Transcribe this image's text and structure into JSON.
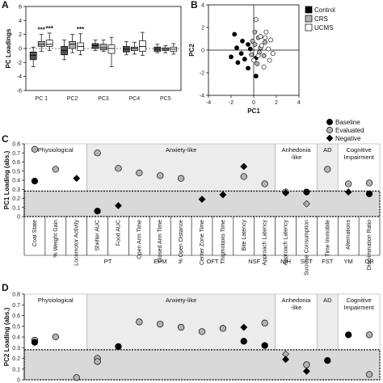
{
  "chart_data": [
    {
      "panel": "A",
      "type": "box",
      "ylabel": "PC Loadings",
      "ylim": [
        -6,
        6
      ],
      "yticks": [
        -6,
        -4,
        -2,
        0,
        2,
        4,
        6
      ],
      "categories": [
        "PC 1",
        "PC2",
        "PC3",
        "PC4",
        "PC5"
      ],
      "groups": [
        "Control",
        "CRS",
        "UCMS"
      ],
      "colors": [
        "#555555",
        "#b3b3b3",
        "#ffffff"
      ],
      "annotations": [
        {
          "category": "PC 1",
          "group": "CRS",
          "text": "***"
        },
        {
          "category": "PC 1",
          "group": "UCMS",
          "text": "***"
        },
        {
          "category": "PC2",
          "group": "UCMS",
          "text": "***"
        }
      ],
      "boxes": [
        [
          {
            "min": -2.6,
            "q1": -1.6,
            "med": -1.0,
            "q3": -0.5,
            "max": 0.2
          },
          {
            "min": -0.4,
            "q1": 0.3,
            "med": 0.6,
            "q3": 1.0,
            "max": 2.0
          },
          {
            "min": -0.3,
            "q1": 0.3,
            "med": 0.6,
            "q3": 1.2,
            "max": 2.2
          }
        ],
        [
          {
            "min": -1.6,
            "q1": -0.9,
            "med": -0.3,
            "q3": 0.3,
            "max": 1.2
          },
          {
            "min": -0.6,
            "q1": 0.0,
            "med": 0.6,
            "q3": 1.0,
            "max": 2.0
          },
          {
            "min": -0.9,
            "q1": -0.3,
            "med": 0.3,
            "q3": 0.8,
            "max": 2.1
          }
        ],
        [
          {
            "min": -0.3,
            "q1": 0.0,
            "med": 0.4,
            "q3": 0.7,
            "max": 1.2
          },
          {
            "min": -0.4,
            "q1": -0.2,
            "med": 0.1,
            "q3": 0.6,
            "max": 1.2
          },
          {
            "min": -2.6,
            "q1": -0.7,
            "med": 0.0,
            "q3": 0.5,
            "max": 1.6
          }
        ],
        [
          {
            "min": -0.9,
            "q1": -0.5,
            "med": -0.1,
            "q3": 0.3,
            "max": 1.0
          },
          {
            "min": -0.8,
            "q1": -0.3,
            "med": 0.0,
            "q3": 0.2,
            "max": 0.9
          },
          {
            "min": -1.0,
            "q1": -0.4,
            "med": 0.3,
            "q3": 1.1,
            "max": 2.3
          }
        ],
        [
          {
            "min": -0.6,
            "q1": -0.4,
            "med": -0.1,
            "q3": 0.2,
            "max": 0.6
          },
          {
            "min": -0.6,
            "q1": -0.3,
            "med": -0.1,
            "q3": 0.1,
            "max": 0.4
          },
          {
            "min": -0.8,
            "q1": -0.4,
            "med": -0.1,
            "q3": 0.2,
            "max": 0.7
          }
        ]
      ]
    },
    {
      "panel": "B",
      "type": "scatter",
      "xlabel": "PC1",
      "ylabel": "PC2",
      "xlim": [
        -4,
        4
      ],
      "ylim": [
        -4,
        4
      ],
      "xticks": [
        -4,
        -2,
        0,
        2,
        4
      ],
      "yticks": [
        -4,
        -2,
        0,
        2,
        4
      ],
      "legend": [
        "Control",
        "CRS",
        "UCMS"
      ],
      "series": [
        {
          "name": "Control",
          "color": "#000000",
          "points": [
            [
              -1.7,
              1.4
            ],
            [
              -1.0,
              0.8
            ],
            [
              -2.0,
              -0.6
            ],
            [
              -1.4,
              -1.1
            ],
            [
              -1.1,
              -0.3
            ],
            [
              -0.8,
              -0.8
            ],
            [
              -0.3,
              0.1
            ],
            [
              -0.5,
              -1.6
            ],
            [
              0.2,
              -0.7
            ],
            [
              0.2,
              -2.3
            ],
            [
              -0.5,
              0.5
            ],
            [
              -1.5,
              0.2
            ]
          ]
        },
        {
          "name": "CRS",
          "color": "#b3b3b3",
          "points": [
            [
              0.1,
              1.6
            ],
            [
              0.4,
              1.1
            ],
            [
              -0.1,
              0.8
            ],
            [
              0.6,
              0.2
            ],
            [
              0.9,
              -0.5
            ],
            [
              0.3,
              -1.2
            ],
            [
              0.1,
              0.5
            ],
            [
              0.5,
              -0.2
            ],
            [
              1.0,
              0.7
            ],
            [
              -0.2,
              -0.4
            ]
          ]
        },
        {
          "name": "UCMS",
          "color": "#ffffff",
          "points": [
            [
              0.2,
              2.7
            ],
            [
              1.1,
              1.6
            ],
            [
              0.6,
              1.2
            ],
            [
              1.5,
              0.9
            ],
            [
              1.3,
              0.1
            ],
            [
              0.4,
              -0.5
            ],
            [
              1.4,
              -0.9
            ],
            [
              0.9,
              -1.5
            ],
            [
              0.7,
              0.4
            ],
            [
              1.0,
              1.1
            ],
            [
              1.7,
              -0.3
            ],
            [
              0.0,
              -0.9
            ]
          ]
        }
      ]
    },
    {
      "panel": "C",
      "type": "scatter",
      "ylabel": "PC1 Loading (abs.)",
      "ylim": [
        0,
        0.8
      ],
      "yticks": [
        0,
        0.1,
        0.2,
        0.3,
        0.4,
        0.5,
        0.6,
        0.7,
        0.8
      ],
      "threshold": 0.28,
      "legend": [
        "Baseline",
        "Evaluated",
        "Negative"
      ],
      "categories": [
        "Coat State",
        "% Weight Gain",
        "Locomotor Activity",
        "Shelter AUC",
        "Food AUC",
        "Open Arm Time",
        "Closed Arm Time",
        "% Open Distance",
        "Center Zone Time",
        "Thigmotaxis Time",
        "Bite Latency",
        "Approach Latency",
        "Approach Latency",
        "Sucrose Consumption",
        "Time Immobile",
        "Alternations",
        "Discrimination Ratio"
      ],
      "domains": [
        "Physiological",
        "Anxiety-like",
        "Anhedonia -like",
        "AD",
        "Cognitive Impairment"
      ],
      "tests": [
        "PT",
        "EPM",
        "OFT",
        "NSF",
        "NIH",
        "SCT",
        "FST",
        "YM",
        "OR"
      ],
      "points": [
        {
          "x": 1,
          "y": 0.39,
          "type": "Baseline"
        },
        {
          "x": 1,
          "y": 0.74,
          "type": "Evaluated"
        },
        {
          "x": 2,
          "y": 0.52,
          "type": "Evaluated"
        },
        {
          "x": 3,
          "y": 0.42,
          "type": "Negative"
        },
        {
          "x": 4,
          "y": 0.06,
          "type": "Baseline"
        },
        {
          "x": 4,
          "y": 0.7,
          "type": "Evaluated"
        },
        {
          "x": 5,
          "y": 0.12,
          "type": "Negative"
        },
        {
          "x": 5,
          "y": 0.53,
          "type": "Evaluated"
        },
        {
          "x": 6,
          "y": 0.48,
          "type": "Evaluated"
        },
        {
          "x": 7,
          "y": 0.45,
          "type": "Evaluated"
        },
        {
          "x": 8,
          "y": 0.42,
          "type": "Evaluated"
        },
        {
          "x": 9,
          "y": 0.19,
          "type": "Negative"
        },
        {
          "x": 10,
          "y": 0.24,
          "type": "Negative"
        },
        {
          "x": 11,
          "y": 0.55,
          "type": "Negative"
        },
        {
          "x": 11,
          "y": 0.44,
          "type": "Evaluated"
        },
        {
          "x": 12,
          "y": 0.36,
          "type": "Evaluated"
        },
        {
          "x": 13,
          "y": 0.27,
          "type": "Evaluated"
        },
        {
          "x": 13,
          "y": 0.26,
          "type": "Negative"
        },
        {
          "x": 14,
          "y": 0.27,
          "type": "Baseline"
        },
        {
          "x": 14,
          "y": 0.14,
          "type": "Negative"
        },
        {
          "x": 15,
          "y": 0.52,
          "type": "Evaluated"
        },
        {
          "x": 16,
          "y": 0.36,
          "type": "Evaluated"
        },
        {
          "x": 16,
          "y": 0.27,
          "type": "Negative"
        },
        {
          "x": 17,
          "y": 0.25,
          "type": "Baseline"
        },
        {
          "x": 17,
          "y": 0.37,
          "type": "Evaluated"
        }
      ]
    },
    {
      "panel": "D",
      "type": "scatter",
      "ylabel": "PC2 Loading (abs.)",
      "ylim": [
        0,
        0.8
      ],
      "yticks": [
        0,
        0.1,
        0.2,
        0.3,
        0.4,
        0.5,
        0.6,
        0.7,
        0.8
      ],
      "threshold": 0.28,
      "domains": [
        "Physiological",
        "Anxiety-like",
        "Anhedonia -like",
        "AD",
        "Cognitive Impairment"
      ],
      "points": [
        {
          "x": 1,
          "y": 0.37,
          "type": "Evaluated"
        },
        {
          "x": 1,
          "y": 0.35,
          "type": "Baseline"
        },
        {
          "x": 2,
          "y": 0.4,
          "type": "Evaluated"
        },
        {
          "x": 3,
          "y": 0.02,
          "type": "Evaluated"
        },
        {
          "x": 4,
          "y": 0.2,
          "type": "Evaluated"
        },
        {
          "x": 4,
          "y": 0.17,
          "type": "Evaluated"
        },
        {
          "x": 5,
          "y": 0.31,
          "type": "Baseline"
        },
        {
          "x": 6,
          "y": 0.54,
          "type": "Evaluated"
        },
        {
          "x": 7,
          "y": 0.52,
          "type": "Evaluated"
        },
        {
          "x": 8,
          "y": 0.49,
          "type": "Evaluated"
        },
        {
          "x": 9,
          "y": 0.45,
          "type": "Evaluated"
        },
        {
          "x": 10,
          "y": 0.48,
          "type": "Evaluated"
        },
        {
          "x": 11,
          "y": 0.36,
          "type": "Baseline"
        },
        {
          "x": 11,
          "y": 0.49,
          "type": "Negative"
        },
        {
          "x": 12,
          "y": 0.32,
          "type": "Baseline"
        },
        {
          "x": 12,
          "y": 0.53,
          "type": "Evaluated"
        },
        {
          "x": 13,
          "y": 0.24,
          "type": "Negative"
        },
        {
          "x": 13,
          "y": 0.19,
          "type": "Negative"
        },
        {
          "x": 14,
          "y": 0.14,
          "type": "Evaluated"
        },
        {
          "x": 14,
          "y": 0.08,
          "type": "Negative"
        },
        {
          "x": 15,
          "y": 0.18,
          "type": "Baseline"
        },
        {
          "x": 16,
          "y": 0.42,
          "type": "Baseline"
        },
        {
          "x": 17,
          "y": 0.42,
          "type": "Evaluated"
        },
        {
          "x": 17,
          "y": 0.05,
          "type": "Evaluated"
        }
      ]
    }
  ],
  "labels": {
    "panel_a": "A",
    "panel_b": "B",
    "panel_c": "C",
    "panel_d": "D"
  }
}
